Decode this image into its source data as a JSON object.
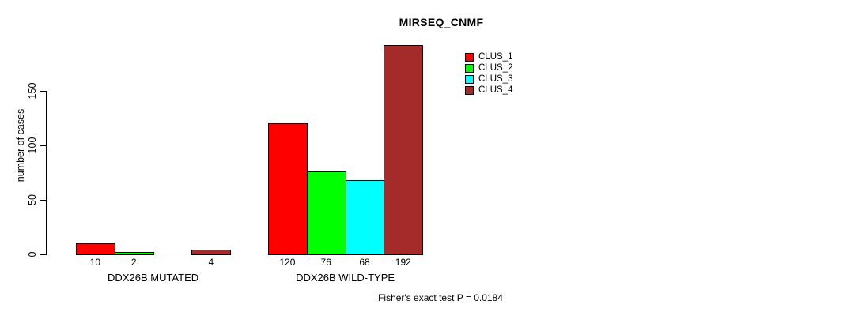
{
  "chart_data": {
    "type": "bar",
    "title": "MIRSEQ_CNMF",
    "ylabel": "number of cases",
    "yticks": [
      0,
      50,
      100,
      150
    ],
    "ylim": [
      0,
      192
    ],
    "grid": false,
    "groups": [
      "DDX26B MUTATED",
      "DDX26B WILD-TYPE"
    ],
    "series": [
      {
        "name": "CLUS_1",
        "color": "#ff0000",
        "values": [
          10,
          120
        ]
      },
      {
        "name": "CLUS_2",
        "color": "#00ff00",
        "values": [
          2,
          76
        ]
      },
      {
        "name": "CLUS_3",
        "color": "#00ffff",
        "values": [
          0,
          68
        ]
      },
      {
        "name": "CLUS_4",
        "color": "#a52a2a",
        "values": [
          4,
          192
        ]
      }
    ],
    "bar_value_labels": {
      "show": true,
      "hide_zero": true
    },
    "legend": {
      "position": "top-right",
      "entries": [
        {
          "label": "CLUS_1",
          "color": "#ff0000"
        },
        {
          "label": "CLUS_2",
          "color": "#00ff00"
        },
        {
          "label": "CLUS_3",
          "color": "#00ffff"
        },
        {
          "label": "CLUS_4",
          "color": "#a52a2a"
        }
      ]
    },
    "note": "Fisher's exact test P = 0.0184"
  }
}
